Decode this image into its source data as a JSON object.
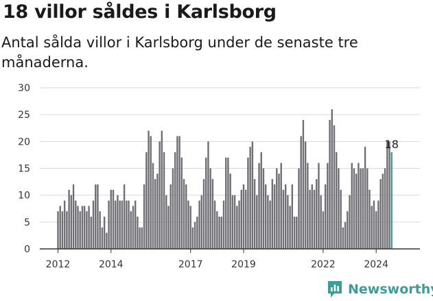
{
  "header": {
    "title": "18 villor såldes i Karlsborg",
    "subtitle": "Antal sålda villor i Karlsborg under de senaste tre månaderna."
  },
  "footer": {
    "brand": "Newsworthy",
    "brand_icon": "newsworthy-chart-logo-icon"
  },
  "colors": {
    "bar": "#6e6e73",
    "highlight": "#3a9e97",
    "grid": "#d9d9d9",
    "baseline": "#333333"
  },
  "chart_data": {
    "type": "bar",
    "title": "18 villor såldes i Karlsborg",
    "subtitle": "Antal sålda villor i Karlsborg under de senaste tre månaderna.",
    "xlabel": "",
    "ylabel": "",
    "ylim": [
      0,
      30
    ],
    "yticks": [
      0,
      5,
      10,
      15,
      20,
      25,
      30
    ],
    "grid": true,
    "x_start": "2012-01",
    "x_end": "2024-11",
    "x_interval": "month",
    "xticks": [
      {
        "label": "2012",
        "x": "2012-01"
      },
      {
        "label": "2014",
        "x": "2014-01"
      },
      {
        "label": "2017",
        "x": "2017-01"
      },
      {
        "label": "2019",
        "x": "2019-01"
      },
      {
        "label": "2022",
        "x": "2022-01"
      },
      {
        "label": "2024",
        "x": "2024-01"
      }
    ],
    "values": [
      7,
      8,
      7,
      9,
      7,
      11,
      10,
      12,
      9,
      8,
      7,
      8,
      8,
      7,
      8,
      6,
      9,
      12,
      12,
      7,
      4,
      6,
      3,
      9,
      11,
      11,
      9,
      10,
      9,
      9,
      12,
      9,
      9,
      7,
      8,
      9,
      6,
      4,
      4,
      12,
      18,
      22,
      21,
      16,
      13,
      14,
      20,
      22,
      18,
      10,
      8,
      12,
      15,
      18,
      21,
      21,
      17,
      13,
      12,
      9,
      8,
      4,
      5,
      6,
      9,
      10,
      13,
      17,
      20,
      15,
      13,
      9,
      7,
      6,
      6,
      9,
      17,
      17,
      14,
      10,
      10,
      8,
      9,
      11,
      12,
      11,
      17,
      19,
      20,
      13,
      10,
      16,
      18,
      15,
      12,
      10,
      9,
      13,
      12,
      15,
      14,
      16,
      11,
      12,
      10,
      8,
      12,
      6,
      6,
      15,
      21,
      24,
      20,
      16,
      11,
      12,
      11,
      13,
      16,
      10,
      7,
      12,
      16,
      24,
      26,
      23,
      18,
      15,
      11,
      4,
      5,
      7,
      10,
      16,
      15,
      14,
      16,
      15,
      15,
      19,
      15,
      11,
      8,
      9,
      7,
      9,
      13,
      14,
      15,
      20,
      20,
      18
    ],
    "highlight_last": 1,
    "annotation": {
      "label": "18",
      "value": 18,
      "target": "last"
    }
  }
}
